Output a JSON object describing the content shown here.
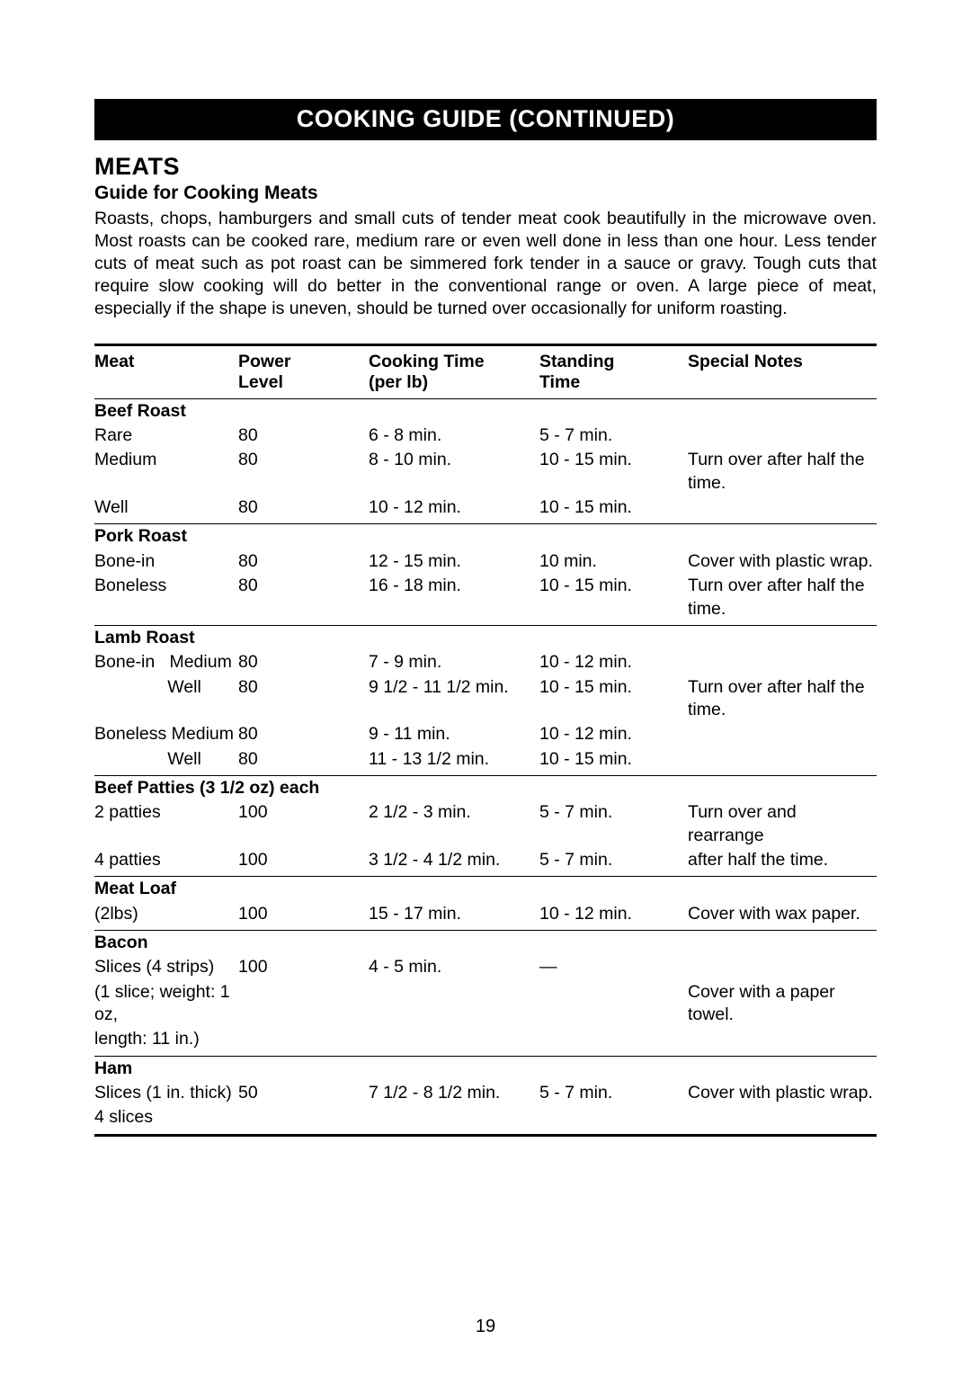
{
  "banner": "COOKING GUIDE (CONTINUED)",
  "section": "MEATS",
  "subtitle": "Guide for Cooking Meats",
  "intro": "Roasts, chops, hamburgers and small cuts of tender meat cook beautifully in the microwave oven. Most roasts can be cooked rare, medium rare or even well done in less than one hour. Less tender cuts of meat such as pot roast can be simmered fork tender in a sauce or gravy. Tough cuts that require slow cooking will do better in the conventional range or oven. A large piece of meat, especially if the shape is uneven, should be turned over occasionally for uniform roasting.",
  "columns": {
    "meat": "Meat",
    "power1": "Power",
    "power2": "Level",
    "cook1": "Cooking Time",
    "cook2": "(per lb)",
    "stand1": "Standing",
    "stand2": "Time",
    "notes": "Special Notes"
  },
  "groups": [
    {
      "title": "Beef Roast",
      "rows": [
        {
          "meat": "Rare",
          "power": "80",
          "cook": "6 - 8 min.",
          "stand": "5 - 7 min.",
          "notes": ""
        },
        {
          "meat": "Medium",
          "power": "80",
          "cook": "8 - 10 min.",
          "stand": "10 - 15 min.",
          "notes": "Turn over after half the time."
        },
        {
          "meat": "Well",
          "power": "80",
          "cook": "10 - 12 min.",
          "stand": "10 - 15 min.",
          "notes": ""
        }
      ]
    },
    {
      "title": "Pork Roast",
      "rows": [
        {
          "meat": "Bone-in",
          "power": "80",
          "cook": "12 - 15 min.",
          "stand": "10 min.",
          "notes": "Cover with plastic wrap."
        },
        {
          "meat": "Boneless",
          "power": "80",
          "cook": "16 - 18 min.",
          "stand": "10 - 15 min.",
          "notes": "Turn over after half the time."
        }
      ]
    },
    {
      "title": "Lamb Roast",
      "rows": [
        {
          "meat": "Bone-in   Medium",
          "power": "80",
          "cook": "7 - 9 min.",
          "stand": "10 - 12 min.",
          "notes": ""
        },
        {
          "meat": "               Well",
          "power": "80",
          "cook": "9 1/2 - 11 1/2 min.",
          "stand": "10 - 15 min.",
          "notes": "Turn over after half the time."
        },
        {
          "meat": "Boneless Medium",
          "power": "80",
          "cook": "9 - 11 min.",
          "stand": "10 - 12 min.",
          "notes": ""
        },
        {
          "meat": "               Well",
          "power": "80",
          "cook": "11 - 13 1/2 min.",
          "stand": "10 - 15 min.",
          "notes": ""
        }
      ]
    },
    {
      "title": "Beef Patties (3 1/2 oz) each",
      "rows": [
        {
          "meat": "2 patties",
          "power": "100",
          "cook": "2 1/2 - 3 min.",
          "stand": "5 - 7 min.",
          "notes": "Turn over and rearrange"
        },
        {
          "meat": "4 patties",
          "power": "100",
          "cook": "3 1/2 - 4 1/2 min.",
          "stand": "5 - 7 min.",
          "notes": "after half the time."
        }
      ]
    },
    {
      "title": "Meat Loaf",
      "rows": [
        {
          "meat": "(2lbs)",
          "power": "100",
          "cook": "15 - 17 min.",
          "stand": "10 - 12 min.",
          "notes": "Cover with wax paper."
        }
      ]
    },
    {
      "title": "Bacon",
      "rows": [
        {
          "meat": "Slices (4 strips)",
          "power": "100",
          "cook": "4 - 5 min.",
          "stand": "—",
          "notes": ""
        },
        {
          "meat": "(1 slice; weight: 1 oz,",
          "power": "",
          "cook": "",
          "stand": "",
          "notes": "Cover with a paper towel."
        },
        {
          "meat": "length: 11 in.)",
          "power": "",
          "cook": "",
          "stand": "",
          "notes": ""
        }
      ]
    },
    {
      "title": "Ham",
      "rows": [
        {
          "meat": "Slices (1 in. thick)",
          "power": "50",
          "cook": "7 1/2 - 8 1/2 min.",
          "stand": "5 - 7 min.",
          "notes": "Cover with plastic wrap."
        },
        {
          "meat": "4 slices",
          "power": "",
          "cook": "",
          "stand": "",
          "notes": ""
        }
      ]
    }
  ],
  "page_number": "19"
}
